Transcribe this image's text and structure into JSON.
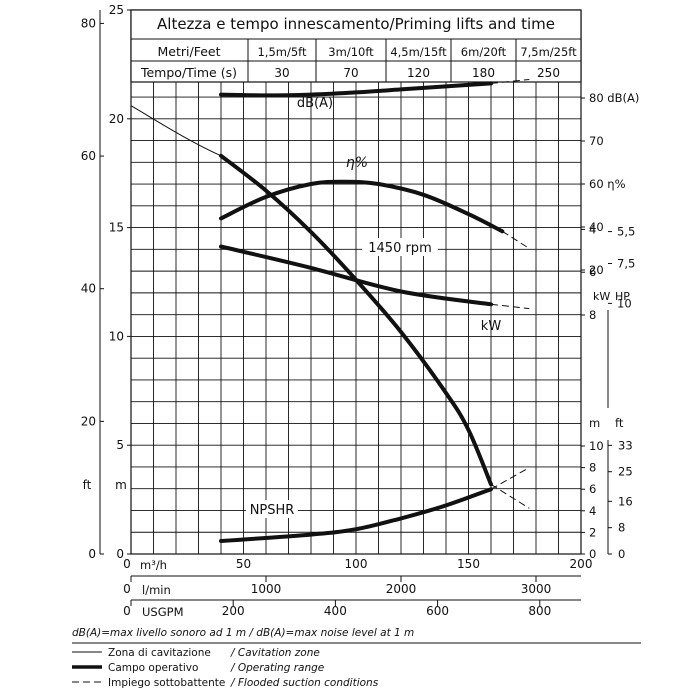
{
  "chart_data": {
    "type": "line",
    "title": "Altezza e tempo innescamento/Priming lifts and time",
    "priming_table": {
      "row1_label": "Metri/Feet",
      "row2_label": "Tempo/Time (s)",
      "heights": [
        "1,5m/5ft",
        "3m/10ft",
        "4,5m/15ft",
        "6m/20ft",
        "7,5m/25ft"
      ],
      "times": [
        "30",
        "70",
        "120",
        "180",
        "250"
      ]
    },
    "x_axes": {
      "m3h": {
        "label": "m³/h",
        "ticks": [
          "0",
          "50",
          "100",
          "150",
          "200"
        ]
      },
      "lmin": {
        "label": "l/min",
        "ticks": [
          "0",
          "1000",
          "2000",
          "3000"
        ]
      },
      "usgpm": {
        "label": "USGPM",
        "ticks": [
          "0",
          "200",
          "400",
          "600",
          "800"
        ]
      }
    },
    "xlim": [
      0,
      200
    ],
    "head_axes": {
      "m_label": "m",
      "ft_label": "ft",
      "m_ticks": [
        "0",
        "5",
        "10",
        "15",
        "20",
        "25"
      ],
      "ft_ticks": [
        "0",
        "20",
        "40",
        "60",
        "80"
      ]
    },
    "right_axes": {
      "db_ticks": [
        "80 dB(A)",
        "70"
      ],
      "eff_ticks": [
        "60 η%",
        "40",
        "20"
      ],
      "kw_label": "kW",
      "hp_label": "HP",
      "kw_ticks": [
        "8",
        "6",
        "4"
      ],
      "hp_ticks": [
        "10",
        "7,5",
        "5,5"
      ],
      "npsh_m_label": "m",
      "npsh_ft_label": "ft",
      "npsh_m_ticks": [
        "10",
        "8",
        "6",
        "4",
        "2",
        "0"
      ],
      "npsh_ft_ticks": [
        "33",
        "25",
        "16",
        "8",
        "0"
      ]
    },
    "curve_labels": {
      "db": "dB(A)",
      "eff": "η%",
      "head": "1450 rpm",
      "kw": "kW",
      "npshr": "NPSHR"
    },
    "series": [
      {
        "name": "dB(A)",
        "unit": "dB(A)",
        "x": [
          40,
          60,
          80,
          100,
          120,
          140,
          160
        ],
        "y": [
          80.8,
          80.6,
          80.8,
          81.3,
          82.0,
          82.7,
          83.4
        ],
        "dashed_x": [
          160,
          177
        ],
        "dashed_y": [
          83.4,
          84.3
        ]
      },
      {
        "name": "η%",
        "unit": "%",
        "x": [
          40,
          60,
          80,
          95,
          110,
          130,
          150,
          165
        ],
        "y": [
          44,
          54,
          60,
          61,
          60,
          55,
          46,
          38
        ],
        "dashed_x": [
          165,
          177
        ],
        "dashed_y": [
          38,
          30
        ]
      },
      {
        "name": "1450 rpm",
        "unit": "m",
        "x": [
          40,
          60,
          80,
          100,
          120,
          140,
          150,
          160
        ],
        "y": [
          18.3,
          16.7,
          14.8,
          12.6,
          10.2,
          7.4,
          5.7,
          3.2
        ],
        "dashed_x": [
          160,
          177
        ],
        "dashed_y": [
          3.2,
          2.1
        ]
      },
      {
        "name": "kW",
        "unit": "kW",
        "x": [
          40,
          80,
          120,
          160
        ],
        "y": [
          4.8,
          5.8,
          6.9,
          7.5
        ],
        "dashed_x": [
          160,
          177
        ],
        "dashed_y": [
          7.5,
          7.7
        ]
      },
      {
        "name": "NPSHR",
        "unit": "m",
        "x": [
          40,
          80,
          100,
          120,
          140,
          160
        ],
        "y": [
          1.2,
          1.8,
          2.3,
          3.3,
          4.5,
          6.0
        ],
        "dashed_x": [
          160,
          177
        ],
        "dashed_y": [
          6.0,
          8.0
        ]
      }
    ],
    "notes": {
      "noise": "dB(A)=max livello sonoro ad 1 m / dB(A)=max noise level at 1 m",
      "legend": [
        {
          "it": "Zona di cavitazione",
          "en": "/ Cavitation zone",
          "style": "thin"
        },
        {
          "it": "Campo operativo",
          "en": "/ Operating range",
          "style": "thick"
        },
        {
          "it": "Impiego sottobattente",
          "en": "/ Flooded suction conditions",
          "style": "dashed"
        }
      ]
    },
    "grid": true
  }
}
